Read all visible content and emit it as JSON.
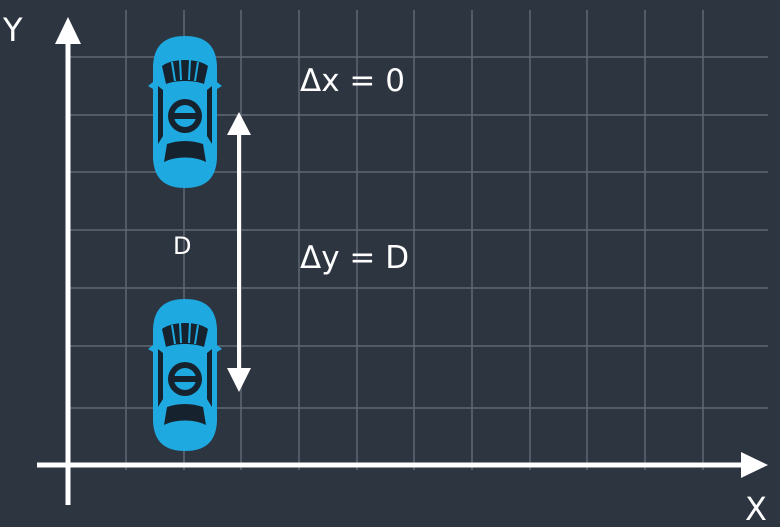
{
  "axes": {
    "x_label": "X",
    "y_label": "Y"
  },
  "annotations": {
    "delta_x": "Δx = 0",
    "delta_y": "Δy = D",
    "distance": "D"
  },
  "colors": {
    "background": "#2c3540",
    "grid": "#5f6873",
    "axis": "#ffffff",
    "car_body": "#1fa9e1",
    "car_dark": "#16232e"
  },
  "icons": {
    "car": "car-top-view-icon",
    "arrow": "double-headed-arrow-icon"
  }
}
